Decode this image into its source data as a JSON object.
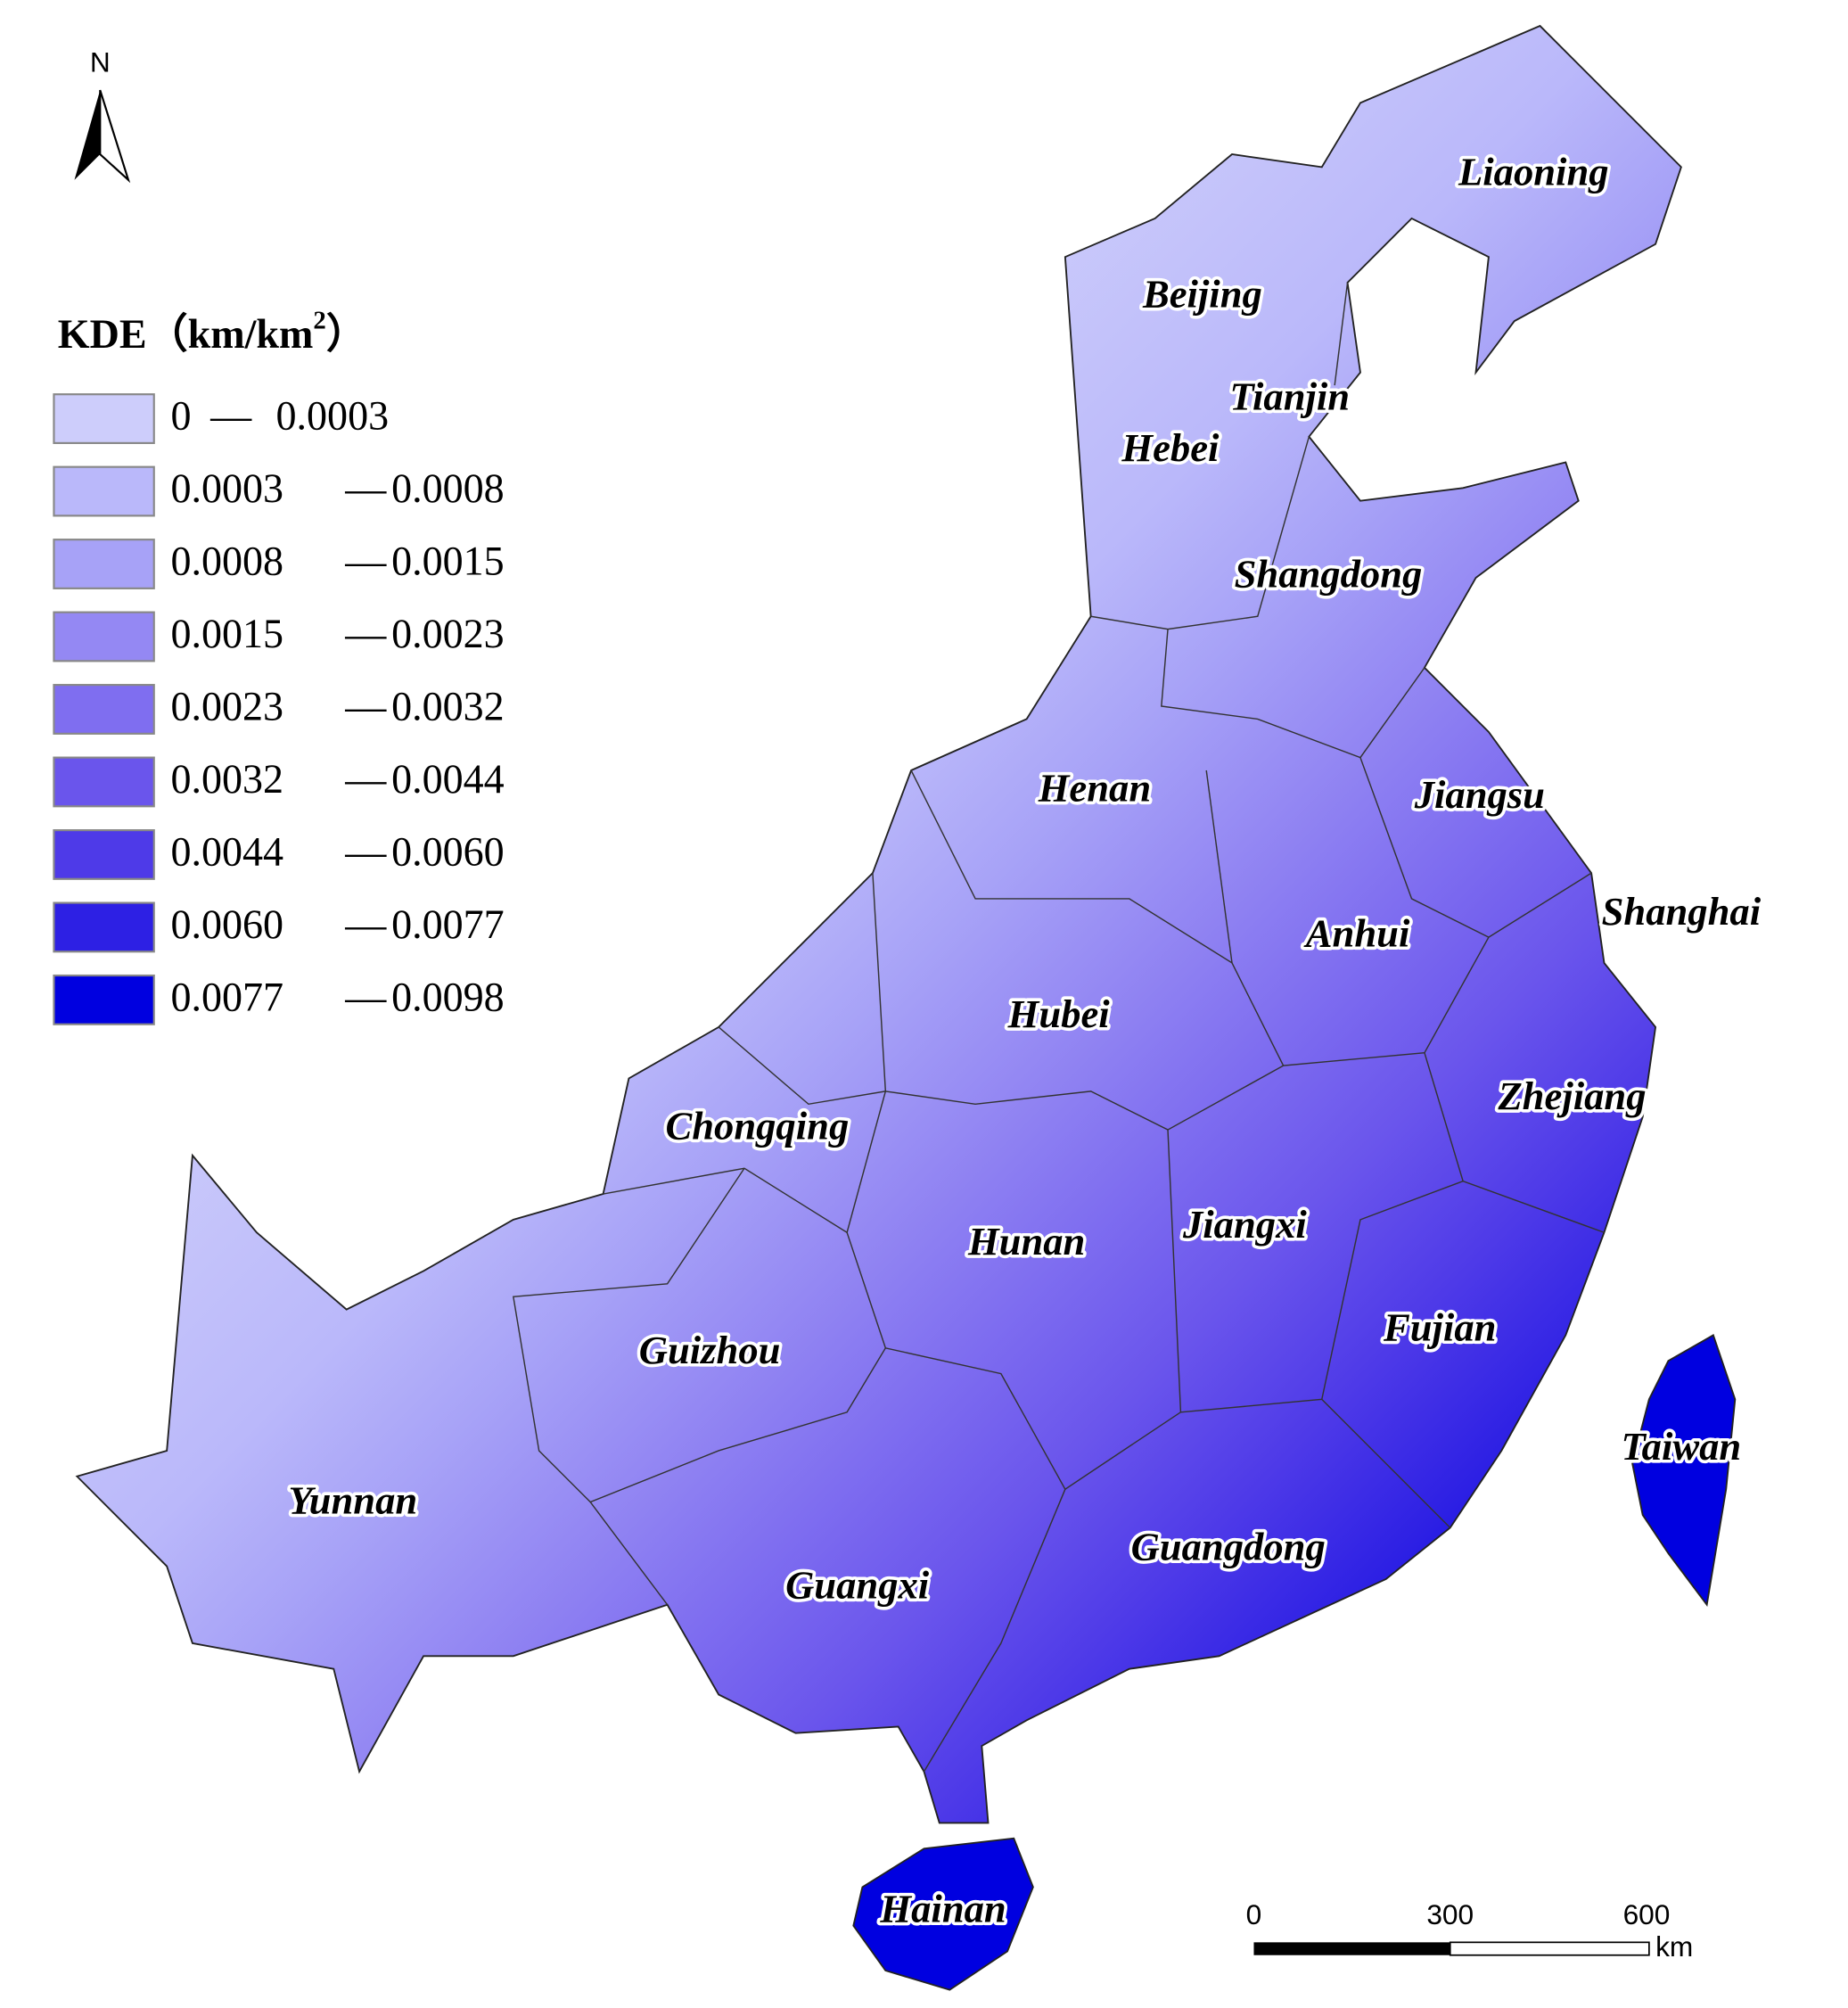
{
  "north": "N",
  "legend": {
    "title": "KDE（km/km",
    "title_sup": "2",
    "title_end": "）",
    "separator": "—",
    "items": [
      {
        "from": "0",
        "to": "0.0003",
        "color": "#cdcdfb"
      },
      {
        "from": "0.0003",
        "to": "0.0008",
        "color": "#bab8fa"
      },
      {
        "from": "0.0008",
        "to": "0.0015",
        "color": "#a7a2f7"
      },
      {
        "from": "0.0015",
        "to": "0.0023",
        "color": "#9488f3"
      },
      {
        "from": "0.0023",
        "to": "0.0032",
        "color": "#7f6ef0"
      },
      {
        "from": "0.0032",
        "to": "0.0044",
        "color": "#6a55ec"
      },
      {
        "from": "0.0044",
        "to": "0.0060",
        "color": "#4e3ae8"
      },
      {
        "from": "0.0060",
        "to": "0.0077",
        "color": "#2d20e4"
      },
      {
        "from": "0.0077",
        "to": "0.0098",
        "color": "#0000e0"
      }
    ]
  },
  "provinces": [
    "Liaoning",
    "Beijing",
    "Tianjin",
    "Hebei",
    "Shangdong",
    "Henan",
    "Jiangsu",
    "Shanghai",
    "Anhui",
    "Hubei",
    "Zhejiang",
    "Chongqing",
    "Hunan",
    "Jiangxi",
    "Fujian",
    "Guizhou",
    "Taiwan",
    "Yunnan",
    "Guangdong",
    "Guangxi",
    "Hainan"
  ],
  "scale_bar": {
    "labels": [
      "0",
      "300",
      "600"
    ],
    "unit": "km"
  }
}
